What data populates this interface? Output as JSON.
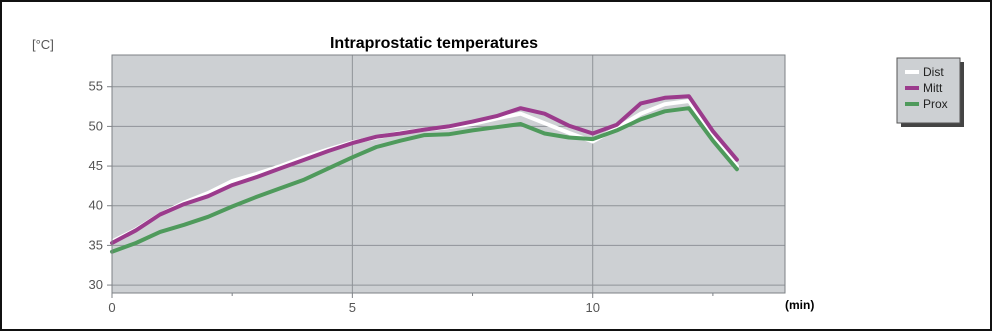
{
  "chart_data": {
    "type": "line",
    "title": "Intraprostatic temperatures",
    "ylabel": "[°C]",
    "xlabel": "(min)",
    "xlim": [
      0,
      14
    ],
    "ylim": [
      29,
      59
    ],
    "x_ticks": [
      0,
      5,
      10
    ],
    "y_ticks": [
      30,
      35,
      40,
      45,
      50,
      55
    ],
    "grid": true,
    "legend_position": "top-right",
    "colors": {
      "plot_background": "#cdd0d3",
      "grid": "#8f9398"
    },
    "series": [
      {
        "name": "Dist",
        "color": "#ffffff",
        "x": [
          0,
          0.5,
          1,
          1.5,
          2,
          2.5,
          3,
          3.5,
          4,
          4.5,
          5,
          5.5,
          6,
          6.5,
          7,
          7.5,
          8,
          8.5,
          9,
          9.5,
          10,
          10.5,
          11,
          11.5,
          12,
          12.5,
          13
        ],
        "y": [
          35.5,
          37,
          38.9,
          40.4,
          41.6,
          43.1,
          44,
          45,
          46.1,
          47.1,
          48,
          48.6,
          49.2,
          49.6,
          49.9,
          50.3,
          51,
          51.6,
          50.4,
          49.2,
          48.1,
          49.8,
          51.6,
          52.8,
          53.2,
          49,
          45
        ]
      },
      {
        "name": "Mitt",
        "color": "#9b3b8c",
        "x": [
          0,
          0.5,
          1,
          1.5,
          2,
          2.5,
          3,
          3.5,
          4,
          4.5,
          5,
          5.5,
          6,
          6.5,
          7,
          7.5,
          8,
          8.5,
          9,
          9.5,
          10,
          10.5,
          11,
          11.5,
          12,
          12.5,
          13
        ],
        "y": [
          35.3,
          36.9,
          38.9,
          40.2,
          41.2,
          42.6,
          43.6,
          44.7,
          45.8,
          46.9,
          47.9,
          48.7,
          49.1,
          49.6,
          50,
          50.6,
          51.3,
          52.3,
          51.6,
          50.1,
          49.1,
          50.2,
          52.9,
          53.6,
          53.8,
          49.4,
          45.8
        ]
      },
      {
        "name": "Prox",
        "color": "#4f9a5c",
        "x": [
          0,
          0.5,
          1,
          1.5,
          2,
          2.5,
          3,
          3.5,
          4,
          4.5,
          5,
          5.5,
          6,
          6.5,
          7,
          7.5,
          8,
          8.5,
          9,
          9.5,
          10,
          10.5,
          11,
          11.5,
          12,
          12.5,
          13
        ],
        "y": [
          34.2,
          35.3,
          36.7,
          37.6,
          38.6,
          39.9,
          41.1,
          42.2,
          43.3,
          44.7,
          46.1,
          47.4,
          48.2,
          48.9,
          49,
          49.5,
          49.9,
          50.3,
          49.1,
          48.6,
          48.4,
          49.5,
          50.9,
          51.9,
          52.3,
          48.2,
          44.6
        ]
      }
    ]
  }
}
